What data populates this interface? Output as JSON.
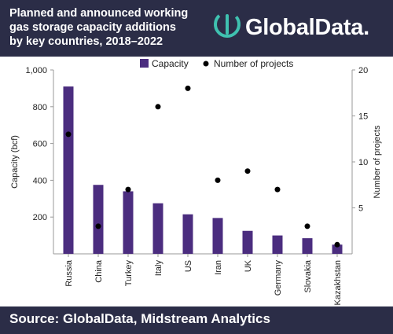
{
  "header": {
    "title_lines": [
      "Planned and announced working",
      "gas storage capacity additions",
      "by key countries, 2018–2022"
    ],
    "logo_text": "GlobalData."
  },
  "footer": {
    "source": "Source:  GlobalData, Midstream Analytics"
  },
  "colors": {
    "header_bg": "#2b2d47",
    "bar": "#4b2d7f",
    "dot": "#000000",
    "logo_accent": "#3fc1b0"
  },
  "chart_data": {
    "type": "bar",
    "categories": [
      "Russia",
      "China",
      "Turkey",
      "Italy",
      "US",
      "Iran",
      "UK",
      "Germany",
      "Slovakia",
      "Kazakhstan"
    ],
    "series": [
      {
        "name": "Capacity",
        "kind": "bar",
        "axis": "left",
        "values": [
          910,
          375,
          340,
          275,
          215,
          195,
          125,
          100,
          85,
          50
        ]
      },
      {
        "name": "Number of projects",
        "kind": "scatter",
        "axis": "right",
        "values": [
          13,
          3,
          7,
          16,
          18,
          8,
          9,
          7,
          3,
          1
        ]
      }
    ],
    "ylabel": "Capacity (bcf)",
    "y2label": "Number of projects",
    "ylim": [
      0,
      1000
    ],
    "y2lim": [
      0,
      20
    ],
    "yticks": [
      "200",
      "400",
      "600",
      "800",
      "1,000"
    ],
    "y2ticks": [
      "5",
      "10",
      "15",
      "20"
    ],
    "legend_position": "top",
    "grid": false
  }
}
